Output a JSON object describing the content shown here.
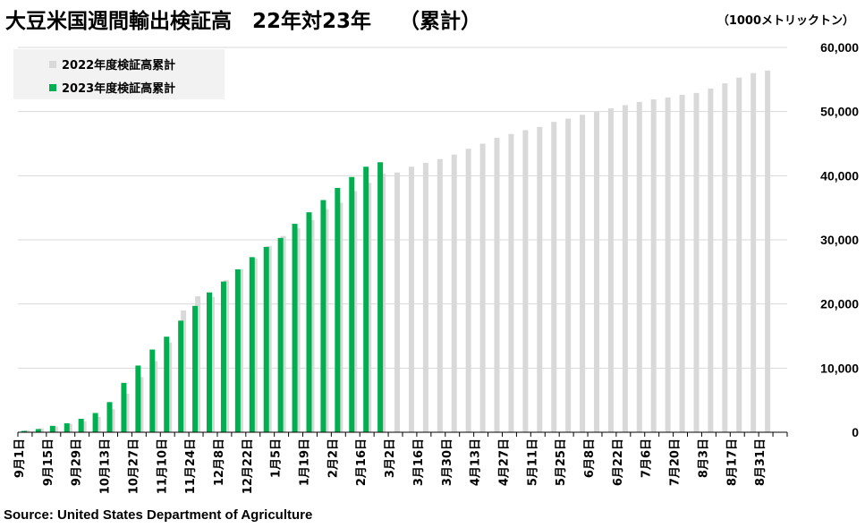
{
  "title": "大豆米国週間輸出検証高　22年対23年　 （累計）",
  "unit_label": "（1000メトリックトン）",
  "source": "Source: United States Department of Agriculture",
  "colors": {
    "series_2022": "#d9d9d9",
    "series_2023": "#00b050"
  },
  "chart_data": {
    "type": "bar",
    "title": "大豆米国週間輸出検証高　22年対23年　 （累計）",
    "ylabel": "（1000メトリックトン）",
    "xlabel": "",
    "ylim": [
      0,
      60000
    ],
    "yticks": [
      0,
      10000,
      20000,
      30000,
      40000,
      50000,
      60000
    ],
    "ytick_labels": [
      "0",
      "10,000",
      "20,000",
      "30,000",
      "40,000",
      "50,000",
      "60,000"
    ],
    "x_tick_labels": [
      "9月1日",
      "9月15日",
      "9月29日",
      "10月13日",
      "10月27日",
      "11月10日",
      "11月24日",
      "12月8日",
      "12月22日",
      "1月5日",
      "1月19日",
      "2月2日",
      "2月16日",
      "3月2日",
      "3月16日",
      "3月30日",
      "4月13日",
      "4月27日",
      "5月11日",
      "5月25日",
      "6月8日",
      "6月22日",
      "7月6日",
      "7月20日",
      "8月3日",
      "8月17日",
      "8月31日"
    ],
    "legend_position": "top-left",
    "series": [
      {
        "name": "2022年度検証高累計",
        "values": [
          300,
          600,
          900,
          1300,
          1700,
          2400,
          3600,
          6000,
          8600,
          11100,
          14000,
          19000,
          21200,
          21100,
          23700,
          25400,
          27100,
          29000,
          30600,
          31800,
          33100,
          34800,
          35800,
          37600,
          38900,
          40300,
          40500,
          41400,
          42000,
          42600,
          43300,
          44200,
          45000,
          45900,
          46500,
          47100,
          47600,
          48400,
          48900,
          49500,
          50000,
          50500,
          51000,
          51500,
          51900,
          52200,
          52600,
          52900,
          53600,
          54400,
          55300,
          56000,
          56400
        ]
      },
      {
        "name": "2023年度検証高累計",
        "values": [
          200,
          500,
          1000,
          1400,
          2100,
          3000,
          4700,
          7700,
          10400,
          12900,
          14900,
          17400,
          19700,
          21800,
          23500,
          25400,
          27300,
          28900,
          30300,
          32500,
          34300,
          36200,
          38100,
          39800,
          41400,
          42100
        ]
      }
    ]
  }
}
